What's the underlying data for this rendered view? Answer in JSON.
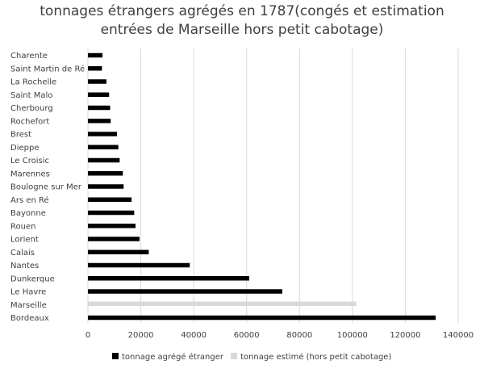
{
  "chart_data": {
    "type": "bar",
    "orientation": "horizontal",
    "title": "tonnages étrangers agrégés en 1787(congés et estimation entrées de Marseille hors petit cabotage)",
    "title_lines": [
      "tonnages étrangers agrégés en 1787(congés et estimation",
      "entrées de Marseille hors petit cabotage)"
    ],
    "categories": [
      "Charente",
      "Saint Martin de Ré",
      "La Rochelle",
      "Saint Malo",
      "Cherbourg",
      "Rochefort",
      "Brest",
      "Dieppe",
      "Le Croisic",
      "Marennes",
      "Boulogne sur Mer",
      "Ars en Ré",
      "Bayonne",
      "Rouen",
      "Lorient",
      "Calais",
      "Nantes",
      "Dunkerque",
      "Le Havre",
      "Marseille",
      "Bordeaux"
    ],
    "series": [
      {
        "name": "tonnage agrégé étranger",
        "color": "#000000",
        "values": [
          5500,
          5300,
          7000,
          8000,
          8400,
          8600,
          11000,
          11500,
          12000,
          13200,
          13500,
          16500,
          17500,
          18000,
          19500,
          23000,
          38500,
          61000,
          73500,
          null,
          131500
        ]
      },
      {
        "name": "tonnage estimé (hors petit cabotage)",
        "color": "#d9d9d9",
        "values": [
          null,
          null,
          null,
          null,
          null,
          null,
          null,
          null,
          null,
          null,
          null,
          null,
          null,
          null,
          null,
          null,
          null,
          null,
          null,
          101500,
          null
        ]
      }
    ],
    "xlim": [
      0,
      140000
    ],
    "xticks": [
      "0",
      "20000",
      "40000",
      "60000",
      "80000",
      "100000",
      "120000",
      "140000"
    ],
    "grid": true,
    "legend": "bottom"
  }
}
